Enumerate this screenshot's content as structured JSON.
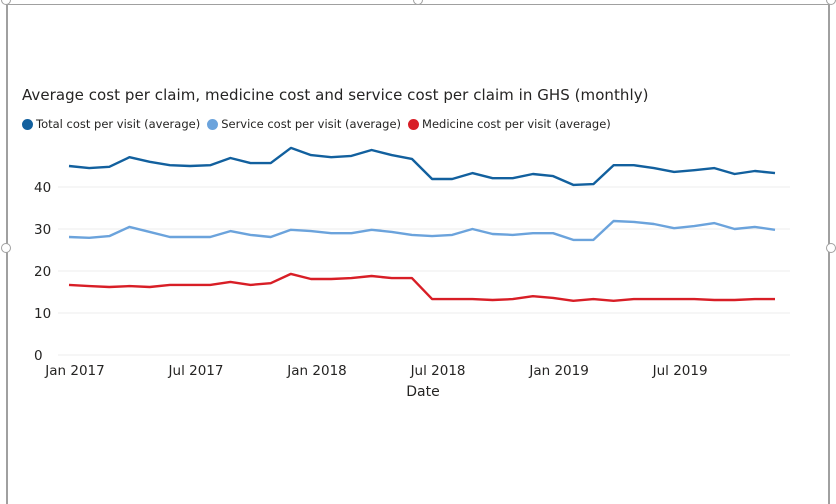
{
  "chart_data": {
    "type": "line",
    "title": "Average cost per claim, medicine cost and service cost per claim in GHS (monthly)",
    "xlabel": "Date",
    "ylabel": "",
    "ylim": [
      0,
      50
    ],
    "yticks": [
      0,
      10,
      20,
      30,
      40
    ],
    "grid": true,
    "legend_position": "top-left",
    "x": [
      "Jan 2017",
      "Feb 2017",
      "Mar 2017",
      "Apr 2017",
      "May 2017",
      "Jun 2017",
      "Jul 2017",
      "Aug 2017",
      "Sep 2017",
      "Oct 2017",
      "Nov 2017",
      "Dec 2017",
      "Jan 2018",
      "Feb 2018",
      "Mar 2018",
      "Apr 2018",
      "May 2018",
      "Jun 2018",
      "Jul 2018",
      "Aug 2018",
      "Sep 2018",
      "Oct 2018",
      "Nov 2018",
      "Dec 2018",
      "Jan 2019",
      "Feb 2019",
      "Mar 2019",
      "Apr 2019",
      "May 2019",
      "Jun 2019",
      "Jul 2019",
      "Aug 2019",
      "Sep 2019",
      "Oct 2019",
      "Nov 2019",
      "Dec 2019"
    ],
    "xtick_labels": [
      {
        "index": 0,
        "label": "Jan 2017"
      },
      {
        "index": 6,
        "label": "Jul 2017"
      },
      {
        "index": 12,
        "label": "Jan 2018"
      },
      {
        "index": 18,
        "label": "Jul 2018"
      },
      {
        "index": 24,
        "label": "Jan 2019"
      },
      {
        "index": 30,
        "label": "Jul 2019"
      }
    ],
    "series": [
      {
        "name": "Total cost per visit (average)",
        "color": "#12609E",
        "values": [
          45.0,
          44.5,
          44.8,
          47.1,
          46.0,
          45.2,
          45.0,
          45.2,
          46.9,
          45.7,
          45.7,
          49.3,
          47.6,
          47.1,
          47.4,
          48.8,
          47.6,
          46.7,
          41.9,
          41.9,
          43.3,
          42.1,
          42.1,
          43.1,
          42.6,
          40.5,
          40.7,
          45.2,
          45.2,
          44.5,
          43.6,
          44.0,
          44.5,
          43.1,
          43.8,
          43.3
        ]
      },
      {
        "name": "Service cost per visit (average)",
        "color": "#6BA3DC",
        "values": [
          28.1,
          27.9,
          28.3,
          30.5,
          29.3,
          28.1,
          28.1,
          28.1,
          29.5,
          28.6,
          28.1,
          29.8,
          29.5,
          29.0,
          29.0,
          29.8,
          29.3,
          28.6,
          28.3,
          28.6,
          30.0,
          28.8,
          28.6,
          29.0,
          29.0,
          27.4,
          27.4,
          31.9,
          31.7,
          31.2,
          30.2,
          30.7,
          31.4,
          30.0,
          30.5,
          29.8
        ]
      },
      {
        "name": "Medicine cost per visit (average)",
        "color": "#D81E26",
        "values": [
          16.7,
          16.4,
          16.2,
          16.4,
          16.2,
          16.7,
          16.7,
          16.7,
          17.4,
          16.7,
          17.1,
          19.3,
          18.1,
          18.1,
          18.3,
          18.8,
          18.3,
          18.3,
          13.3,
          13.3,
          13.3,
          13.1,
          13.3,
          14.0,
          13.6,
          12.9,
          13.3,
          12.9,
          13.3,
          13.3,
          13.3,
          13.3,
          13.1,
          13.1,
          13.3,
          13.3
        ]
      }
    ]
  },
  "colors": {
    "gridline": "#EDEDED",
    "frame": "#A0A0A0",
    "text": "#252423"
  }
}
